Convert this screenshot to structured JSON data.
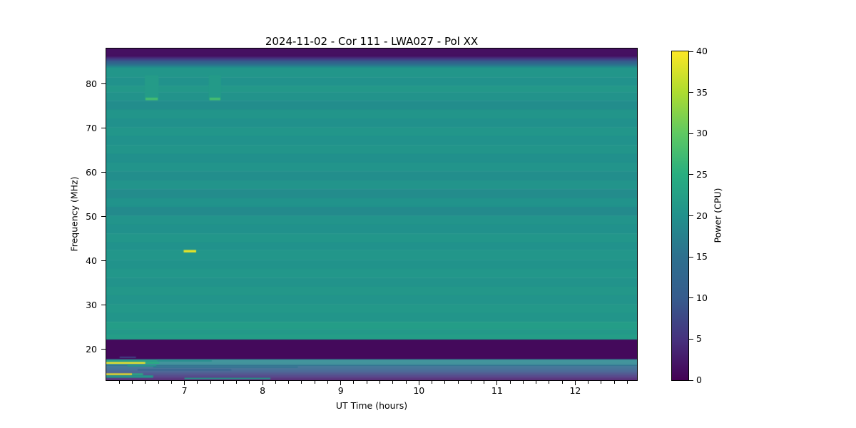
{
  "title": "2024-11-02 - Cor 111 - LWA027 - Pol XX",
  "axes": {
    "xlabel": "UT Time (hours)",
    "ylabel": "Frequency (MHz)",
    "x_major_ticks": [
      7,
      8,
      9,
      10,
      11,
      12
    ],
    "x_minor_interval_hours": 0.166667,
    "y_major_ticks": [
      20,
      30,
      40,
      50,
      60,
      70,
      80
    ]
  },
  "colorbar": {
    "label": "Power (CPU)",
    "ticks": [
      0,
      5,
      10,
      15,
      20,
      25,
      30,
      35,
      40
    ],
    "range": [
      0,
      40
    ],
    "colormap_name": "viridis",
    "colormap": [
      [
        0.0,
        "#440154"
      ],
      [
        0.125,
        "#46327e"
      ],
      [
        0.25,
        "#365c8d"
      ],
      [
        0.375,
        "#2d708e"
      ],
      [
        0.5,
        "#21918c"
      ],
      [
        0.625,
        "#28ae80"
      ],
      [
        0.75,
        "#5ec962"
      ],
      [
        0.875,
        "#addc30"
      ],
      [
        1.0,
        "#fde725"
      ]
    ]
  },
  "chart_data": {
    "type": "heatmap",
    "title": "2024-11-02 - Cor 111 - LWA027 - Pol XX",
    "xlabel": "UT Time (hours)",
    "ylabel": "Frequency (MHz)",
    "zlabel": "Power (CPU)",
    "x_range": [
      6.0,
      12.79
    ],
    "y_range": [
      13,
      88
    ],
    "power_range": [
      0,
      40
    ],
    "description": "Radio dynamic spectrum. Uniform teal background near power 20 CPU with faint horizontal banding; dark (power~1) bands above 86.4 MHz and between 17.8-22.2 MHz; blue-to-purple fade below 16.4 MHz; bright RFI lines below 17.6 MHz at the start of the observation; short yellow burst at 42 MHz near 7.05 h; two faint green patches 76.8-82 MHz near 6.6 h and 7.4 h.",
    "background_bands": [
      [
        88.0,
        86.4,
        1.5,
        1.5
      ],
      [
        86.4,
        83.6,
        1.5,
        20.5
      ],
      [
        83.6,
        81.5,
        20.9,
        20.9
      ],
      [
        81.5,
        79.6,
        20.1,
        20.1
      ],
      [
        79.6,
        78.1,
        21.2,
        21.2
      ],
      [
        78.1,
        76.2,
        20.4,
        20.4
      ],
      [
        76.2,
        74.2,
        19.4,
        19.4
      ],
      [
        74.2,
        72.2,
        20.7,
        20.7
      ],
      [
        72.2,
        70.2,
        20.0,
        20.0
      ],
      [
        70.2,
        68.2,
        20.8,
        20.8
      ],
      [
        68.2,
        66.2,
        20.1,
        20.1
      ],
      [
        66.2,
        64.2,
        20.7,
        20.7
      ],
      [
        64.2,
        62.2,
        19.8,
        19.8
      ],
      [
        62.2,
        60.2,
        20.6,
        20.6
      ],
      [
        60.2,
        58.2,
        19.6,
        19.6
      ],
      [
        58.2,
        56.2,
        20.5,
        20.5
      ],
      [
        56.2,
        54.2,
        19.3,
        19.3
      ],
      [
        54.2,
        52.2,
        20.3,
        20.3
      ],
      [
        52.2,
        50.2,
        19.0,
        19.0
      ],
      [
        50.2,
        48.2,
        20.6,
        20.6
      ],
      [
        48.2,
        46.2,
        20.0,
        20.0
      ],
      [
        46.2,
        44.2,
        20.8,
        20.8
      ],
      [
        44.2,
        42.5,
        20.2,
        20.2
      ],
      [
        42.5,
        40.2,
        20.9,
        20.9
      ],
      [
        40.2,
        38.2,
        20.3,
        20.3
      ],
      [
        38.2,
        36.2,
        21.0,
        21.0
      ],
      [
        36.2,
        34.2,
        20.4,
        20.4
      ],
      [
        34.2,
        32.2,
        21.1,
        21.1
      ],
      [
        32.2,
        30.2,
        20.5,
        20.5
      ],
      [
        30.2,
        28.2,
        21.2,
        21.2
      ],
      [
        28.2,
        26.2,
        20.7,
        20.7
      ],
      [
        26.2,
        24.6,
        22.0,
        22.0
      ],
      [
        24.6,
        23.4,
        21.4,
        21.4
      ],
      [
        23.4,
        22.2,
        22.1,
        22.1
      ],
      [
        22.2,
        17.75,
        0.8,
        0.8
      ],
      [
        17.75,
        16.45,
        18.5,
        17.5
      ],
      [
        16.45,
        13.0,
        14.5,
        2.0
      ]
    ],
    "features": [
      {
        "label": "green-patch-1",
        "t0": 6.49,
        "t1": 6.67,
        "f_top": 82.0,
        "f_bot": 76.8,
        "power": 21.8
      },
      {
        "label": "green-patch-1-edge",
        "t0": 6.5,
        "t1": 6.66,
        "f_top": 76.9,
        "f_bot": 76.3,
        "power": 27.5
      },
      {
        "label": "green-patch-2",
        "t0": 7.31,
        "t1": 7.47,
        "f_top": 82.0,
        "f_bot": 76.8,
        "power": 21.6
      },
      {
        "label": "green-patch-2-edge",
        "t0": 7.32,
        "t1": 7.46,
        "f_top": 76.9,
        "f_bot": 76.3,
        "power": 27.5
      },
      {
        "label": "yellow-burst-42MHz",
        "t0": 6.99,
        "t1": 7.15,
        "f_top": 42.45,
        "f_bot": 41.9,
        "power": 38.5
      },
      {
        "label": "rfi-teal-17.4MHz",
        "t0": 6.0,
        "t1": 6.65,
        "f_top": 17.55,
        "f_bot": 17.2,
        "power": 22.5
      },
      {
        "label": "rfi-teal-17.4MHz-tail",
        "t0": 6.65,
        "t1": 7.35,
        "f_top": 17.5,
        "f_bot": 17.25,
        "power": 19.5
      },
      {
        "label": "rfi-yellow-16.9MHz",
        "t0": 6.0,
        "t1": 6.5,
        "f_top": 17.1,
        "f_bot": 16.72,
        "power": 39.0
      },
      {
        "label": "rfi-yellow-16.9MHz-tail",
        "t0": 6.5,
        "t1": 6.68,
        "f_top": 17.1,
        "f_bot": 16.72,
        "power": 25.0
      },
      {
        "label": "rfi-teal-16.2MHz",
        "t0": 6.27,
        "t1": 6.64,
        "f_top": 16.42,
        "f_bot": 16.1,
        "power": 21.0
      },
      {
        "label": "rfi-faint-16MHz",
        "t0": 6.6,
        "t1": 8.45,
        "f_top": 16.1,
        "f_bot": 15.85,
        "power": 15.5
      },
      {
        "label": "rfi-faint-15.3MHz",
        "t0": 6.4,
        "t1": 7.6,
        "f_top": 15.45,
        "f_bot": 15.2,
        "power": 11.0
      },
      {
        "label": "rfi-faint-18.2MHz",
        "t0": 6.17,
        "t1": 6.38,
        "f_top": 18.35,
        "f_bot": 18.0,
        "power": 6.0
      },
      {
        "label": "rfi-yellow-14.4MHz",
        "t0": 6.0,
        "t1": 6.33,
        "f_top": 14.55,
        "f_bot": 14.18,
        "power": 39.0
      },
      {
        "label": "rfi-yellow-14.4MHz-tail",
        "t0": 6.33,
        "t1": 6.47,
        "f_top": 14.55,
        "f_bot": 14.18,
        "power": 25.0
      },
      {
        "label": "rfi-teal-13.8MHz",
        "t0": 6.0,
        "t1": 6.6,
        "f_top": 14.1,
        "f_bot": 13.55,
        "power": 21.0
      },
      {
        "label": "rfi-teal-13.4MHz",
        "t0": 7.0,
        "t1": 8.1,
        "f_top": 13.55,
        "f_bot": 13.25,
        "power": 21.5
      }
    ]
  }
}
